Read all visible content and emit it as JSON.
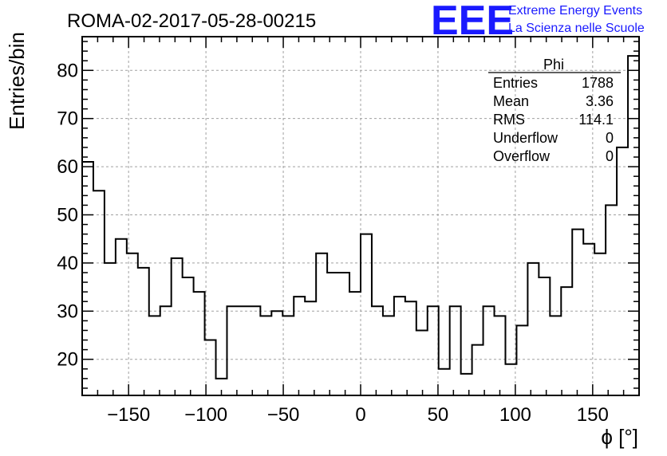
{
  "chart_data": {
    "type": "bar",
    "histogram": true,
    "title": "ROMA-02-2017-05-28-00215",
    "xlabel": "ϕ [°]",
    "ylabel": "Entries/bin",
    "xlim": [
      -180,
      180
    ],
    "ylim": [
      12.5,
      87
    ],
    "grid": true,
    "bin_width": 7.2,
    "x_ticks": [
      -150,
      -100,
      -50,
      0,
      50,
      100,
      150
    ],
    "x_tick_labels": [
      "−150",
      "−100",
      "−50",
      "0",
      "50",
      "100",
      "150"
    ],
    "y_ticks": [
      20,
      30,
      40,
      50,
      60,
      70,
      80
    ],
    "y_tick_labels": [
      "20",
      "30",
      "40",
      "50",
      "60",
      "70",
      "80"
    ],
    "values": [
      61,
      55,
      40,
      45,
      42,
      39,
      29,
      31,
      41,
      37,
      34,
      24,
      16,
      31,
      31,
      31,
      29,
      30,
      29,
      33,
      32,
      42,
      38,
      38,
      34,
      46,
      31,
      29,
      33,
      32,
      26,
      31,
      18,
      31,
      17,
      23,
      31,
      29,
      19,
      27,
      40,
      37,
      29,
      35,
      47,
      44,
      42,
      52,
      64,
      83
    ]
  },
  "stats_box": {
    "title": "Phi",
    "rows": [
      {
        "label": "Entries",
        "value": "1788"
      },
      {
        "label": "Mean",
        "value": "3.36"
      },
      {
        "label": "RMS",
        "value": "114.1"
      },
      {
        "label": "Underflow",
        "value": "0"
      },
      {
        "label": "Overflow",
        "value": "0"
      }
    ]
  },
  "logo": {
    "text": "EEE",
    "line1": "Extreme Energy Events",
    "line2": "La Scienza nelle Scuole",
    "color": "#1a1aff"
  }
}
